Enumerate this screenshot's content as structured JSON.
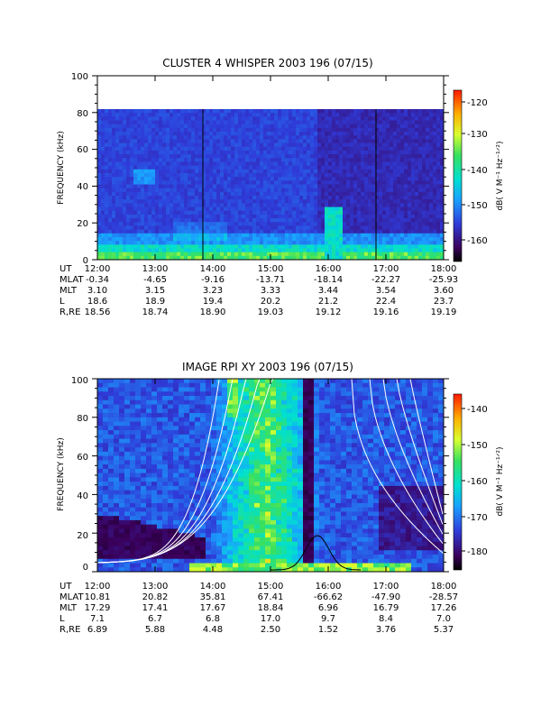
{
  "panels": [
    {
      "title": "CLUSTER 4 WHISPER 2003 196 (07/15)",
      "ylabel": "FREQUENCY (kHz)",
      "yticks": [
        "0",
        "20",
        "40",
        "60",
        "80",
        "100"
      ],
      "colorbar_label": "dB( V M⁻¹ Hz⁻¹ᐟ²)",
      "colorbar_ticks": [
        "-120",
        "-130",
        "-140",
        "-150",
        "-160"
      ],
      "ephemeris": {
        "labels": [
          "UT",
          "MLAT",
          "MLT",
          "L",
          "R,RE"
        ],
        "times": [
          "12:00",
          "13:00",
          "14:00",
          "15:00",
          "16:00",
          "17:00",
          "18:00"
        ],
        "MLAT": [
          "-0.34",
          "-4.65",
          "-9.16",
          "-13.71",
          "-18.14",
          "-22.27",
          "-25.93"
        ],
        "MLT": [
          "3.10",
          "3.15",
          "3.23",
          "3.33",
          "3.44",
          "3.54",
          "3.60"
        ],
        "L": [
          "18.6",
          "18.9",
          "19.4",
          "20.2",
          "21.2",
          "22.4",
          "23.7"
        ],
        "RRE": [
          "18.56",
          "18.74",
          "18.90",
          "19.03",
          "19.12",
          "19.16",
          "19.19"
        ]
      }
    },
    {
      "title": "IMAGE RPI XY 2003 196 (07/15)",
      "ylabel": "FREQUENCY (kHz)",
      "yticks": [
        "0",
        "20",
        "40",
        "60",
        "80",
        "100"
      ],
      "colorbar_label": "dB( V M⁻¹ Hz⁻¹ᐟ²)",
      "colorbar_ticks": [
        "-140",
        "-150",
        "-160",
        "-170",
        "-180"
      ],
      "ephemeris": {
        "labels": [
          "UT",
          "MLAT",
          "MLT",
          "L",
          "R,RE"
        ],
        "times": [
          "12:00",
          "13:00",
          "14:00",
          "15:00",
          "16:00",
          "17:00",
          "18:00"
        ],
        "MLAT": [
          "10.81",
          "20.82",
          "35.81",
          "67.41",
          "-66.62",
          "-47.90",
          "-28.57"
        ],
        "MLT": [
          "17.29",
          "17.41",
          "17.67",
          "18.84",
          "6.96",
          "16.79",
          "17.26"
        ],
        "L": [
          "7.1",
          "6.7",
          "6.8",
          "17.0",
          "9.7",
          "8.4",
          "7.0"
        ],
        "RRE": [
          "6.89",
          "5.88",
          "4.48",
          "2.50",
          "1.52",
          "3.76",
          "5.37"
        ]
      }
    }
  ],
  "chart_data": [
    {
      "type": "heatmap",
      "title": "CLUSTER 4 WHISPER 2003 196 (07/15)",
      "ylabel": "FREQUENCY (kHz)",
      "x_range": [
        "12:00",
        "18:00"
      ],
      "ylim": [
        0,
        100
      ],
      "data_ylim": [
        0,
        80
      ],
      "color_scale": {
        "min": -165,
        "max": -118,
        "unit": "dB( V M-1 Hz-1/2)"
      },
      "vertical_markers": [
        "13:50",
        "16:50"
      ]
    },
    {
      "type": "heatmap",
      "title": "IMAGE RPI XY 2003 196 (07/15)",
      "ylabel": "FREQUENCY (kHz)",
      "x_range": [
        "12:00",
        "18:00"
      ],
      "ylim": [
        0,
        100
      ],
      "color_scale": {
        "min": -185,
        "max": -135,
        "unit": "dB( V M-1 Hz-1/2)"
      },
      "overlay_curves": "white frequency-model lines"
    }
  ],
  "colors": {
    "background": "#ffffff",
    "curve": "#ffffff"
  }
}
